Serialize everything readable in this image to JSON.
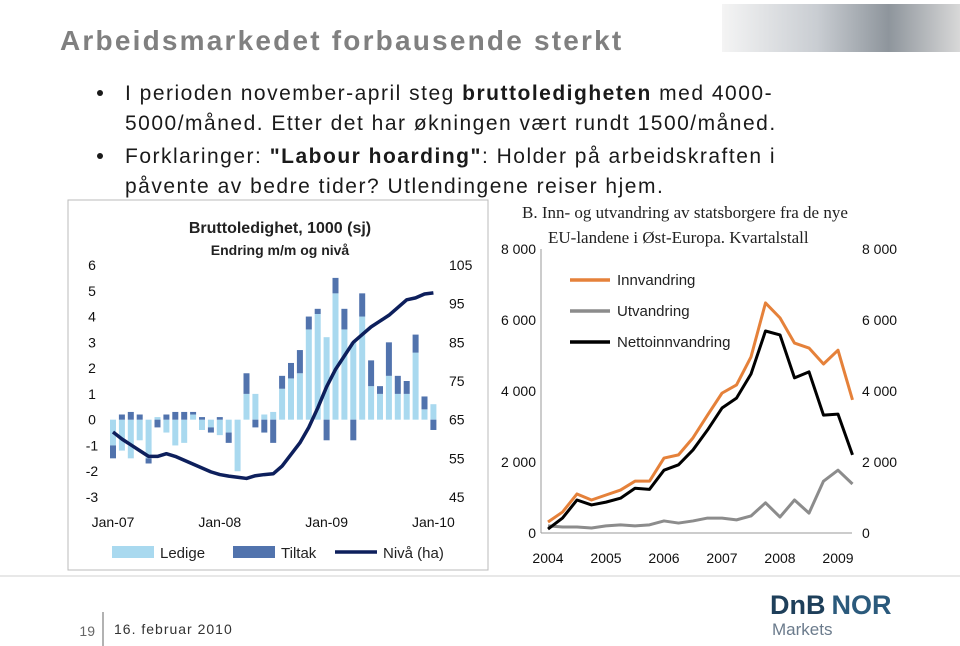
{
  "header": {
    "title": "Arbeidsmarkedet forbausende sterkt"
  },
  "bullets": [
    {
      "lines": [
        [
          {
            "text": "I perioden november-april steg "
          },
          {
            "text": "bruttoledigheten",
            "bold": true
          },
          {
            "text": " med 4000-"
          }
        ],
        [
          {
            "text": "5000/måned. Etter det har økningen vært rundt 1500/måned."
          }
        ]
      ]
    },
    {
      "lines": [
        [
          {
            "text": "Forklaringer: "
          },
          {
            "text": "\"Labour hoarding\"",
            "bold": true
          },
          {
            "text": ": Holder på arbeidskraften i"
          }
        ],
        [
          {
            "text": "påvente av bedre tider? Utlendingene reiser hjem."
          }
        ]
      ]
    }
  ],
  "chart_data": [
    {
      "type": "bar",
      "stacked": true,
      "title": "Bruttoledighet, 1000 (sj)",
      "subtitle": "Endring m/m og nivå",
      "categories": [
        "Jan-07",
        null,
        null,
        null,
        null,
        null,
        null,
        null,
        null,
        null,
        null,
        null,
        "Jan-08",
        null,
        null,
        null,
        null,
        null,
        null,
        null,
        null,
        null,
        null,
        null,
        "Jan-09",
        null,
        null,
        null,
        null,
        null,
        null,
        null,
        null,
        null,
        null,
        null,
        "Jan-10"
      ],
      "series": [
        {
          "name": "Ledige",
          "color": "#a9d9ef",
          "values": [
            -1.0,
            -1.2,
            -1.5,
            -0.8,
            -1.5,
            0.1,
            -0.5,
            -1.0,
            -0.9,
            0.2,
            -0.4,
            -0.3,
            -0.6,
            -0.5,
            -2.0,
            1.0,
            1.0,
            0.2,
            0.3,
            1.2,
            1.6,
            1.8,
            3.5,
            4.1,
            3.2,
            4.9,
            3.5,
            3.0,
            4.0,
            1.3,
            1.0,
            1.7,
            1.0,
            1.0,
            2.6,
            0.4,
            0.6
          ]
        },
        {
          "name": "Tiltak",
          "color": "#5173ad",
          "values": [
            -0.5,
            0.2,
            0.3,
            0.2,
            -0.2,
            -0.3,
            0.2,
            0.3,
            0.3,
            0.1,
            0.1,
            -0.2,
            0.1,
            -0.4,
            0.0,
            0.8,
            -0.3,
            -0.5,
            -0.9,
            0.5,
            0.6,
            0.9,
            0.5,
            0.2,
            -0.8,
            0.6,
            0.8,
            -0.8,
            0.9,
            1.0,
            0.3,
            1.3,
            0.7,
            0.5,
            0.7,
            0.5,
            -0.4
          ]
        },
        {
          "name": "Nivå (ha)",
          "type": "line",
          "axis": "y2",
          "color": "#0d1f5c",
          "values": [
            61.8,
            60,
            58.5,
            57,
            55.5,
            55.5,
            56.2,
            55.5,
            54.5,
            53.5,
            52.5,
            51.5,
            50.8,
            50.4,
            50.1,
            49.8,
            50.5,
            50.8,
            51,
            53,
            56,
            59,
            63,
            68,
            73.5,
            78,
            81.5,
            85,
            87,
            89,
            90.5,
            92,
            94,
            96,
            96.5,
            97.5,
            97.8
          ]
        }
      ],
      "ylim": [
        -3,
        6
      ],
      "yticks": [
        -3,
        -2,
        -1,
        0,
        1,
        2,
        3,
        4,
        5,
        6
      ],
      "y2lim": [
        45,
        105
      ],
      "y2ticks": [
        45,
        55,
        65,
        75,
        85,
        95,
        105
      ],
      "legend": "bottom"
    },
    {
      "type": "line",
      "title": [
        "B. Inn- og utvandring av statsborgere fra de nye",
        "EU-landene i Øst-Europa. Kvartalstall"
      ],
      "categories": [
        "2004",
        null,
        null,
        null,
        "2005",
        null,
        null,
        null,
        "2006",
        null,
        null,
        null,
        "2007",
        null,
        null,
        null,
        "2008",
        null,
        null,
        null,
        "2009",
        null
      ],
      "series": [
        {
          "name": "Innvandring",
          "color": "#e5813a",
          "values": [
            310,
            590,
            1100,
            930,
            1070,
            1210,
            1460,
            1460,
            2110,
            2200,
            2680,
            3320,
            3940,
            4170,
            4960,
            6480,
            6060,
            5350,
            5210,
            4760,
            5150,
            3750
          ]
        },
        {
          "name": "Utvandring",
          "color": "#8c8c8c",
          "values": [
            200,
            170,
            170,
            140,
            200,
            230,
            200,
            230,
            340,
            280,
            340,
            420,
            420,
            370,
            480,
            850,
            450,
            930,
            560,
            1460,
            1770,
            1380
          ]
        },
        {
          "name": "Nettoinnvandring",
          "color": "#000000",
          "values": [
            110,
            420,
            930,
            790,
            870,
            980,
            1260,
            1230,
            1770,
            1920,
            2340,
            2900,
            3520,
            3800,
            4480,
            5690,
            5580,
            4370,
            4540,
            3320,
            3350,
            2200
          ]
        }
      ],
      "ylim": [
        0,
        8000
      ],
      "yticks": [
        0,
        {
          "value": 2000,
          "label": "2 000"
        },
        {
          "value": 4000,
          "label": "4 000"
        },
        {
          "value": 6000,
          "label": "6 000"
        },
        {
          "value": 8000,
          "label": "8 000"
        }
      ],
      "y2lim": [
        0,
        8000
      ],
      "y2ticks": [
        0,
        {
          "value": 2000,
          "label": "2 000"
        },
        {
          "value": 4000,
          "label": "4 000"
        },
        {
          "value": 6000,
          "label": "6 000"
        },
        {
          "value": 8000,
          "label": "8 000"
        }
      ],
      "legend": "upper-left"
    }
  ],
  "footer": {
    "page": "19",
    "date": "16. februar 2010",
    "logo": [
      "DnB",
      "NOR",
      "Markets"
    ]
  }
}
